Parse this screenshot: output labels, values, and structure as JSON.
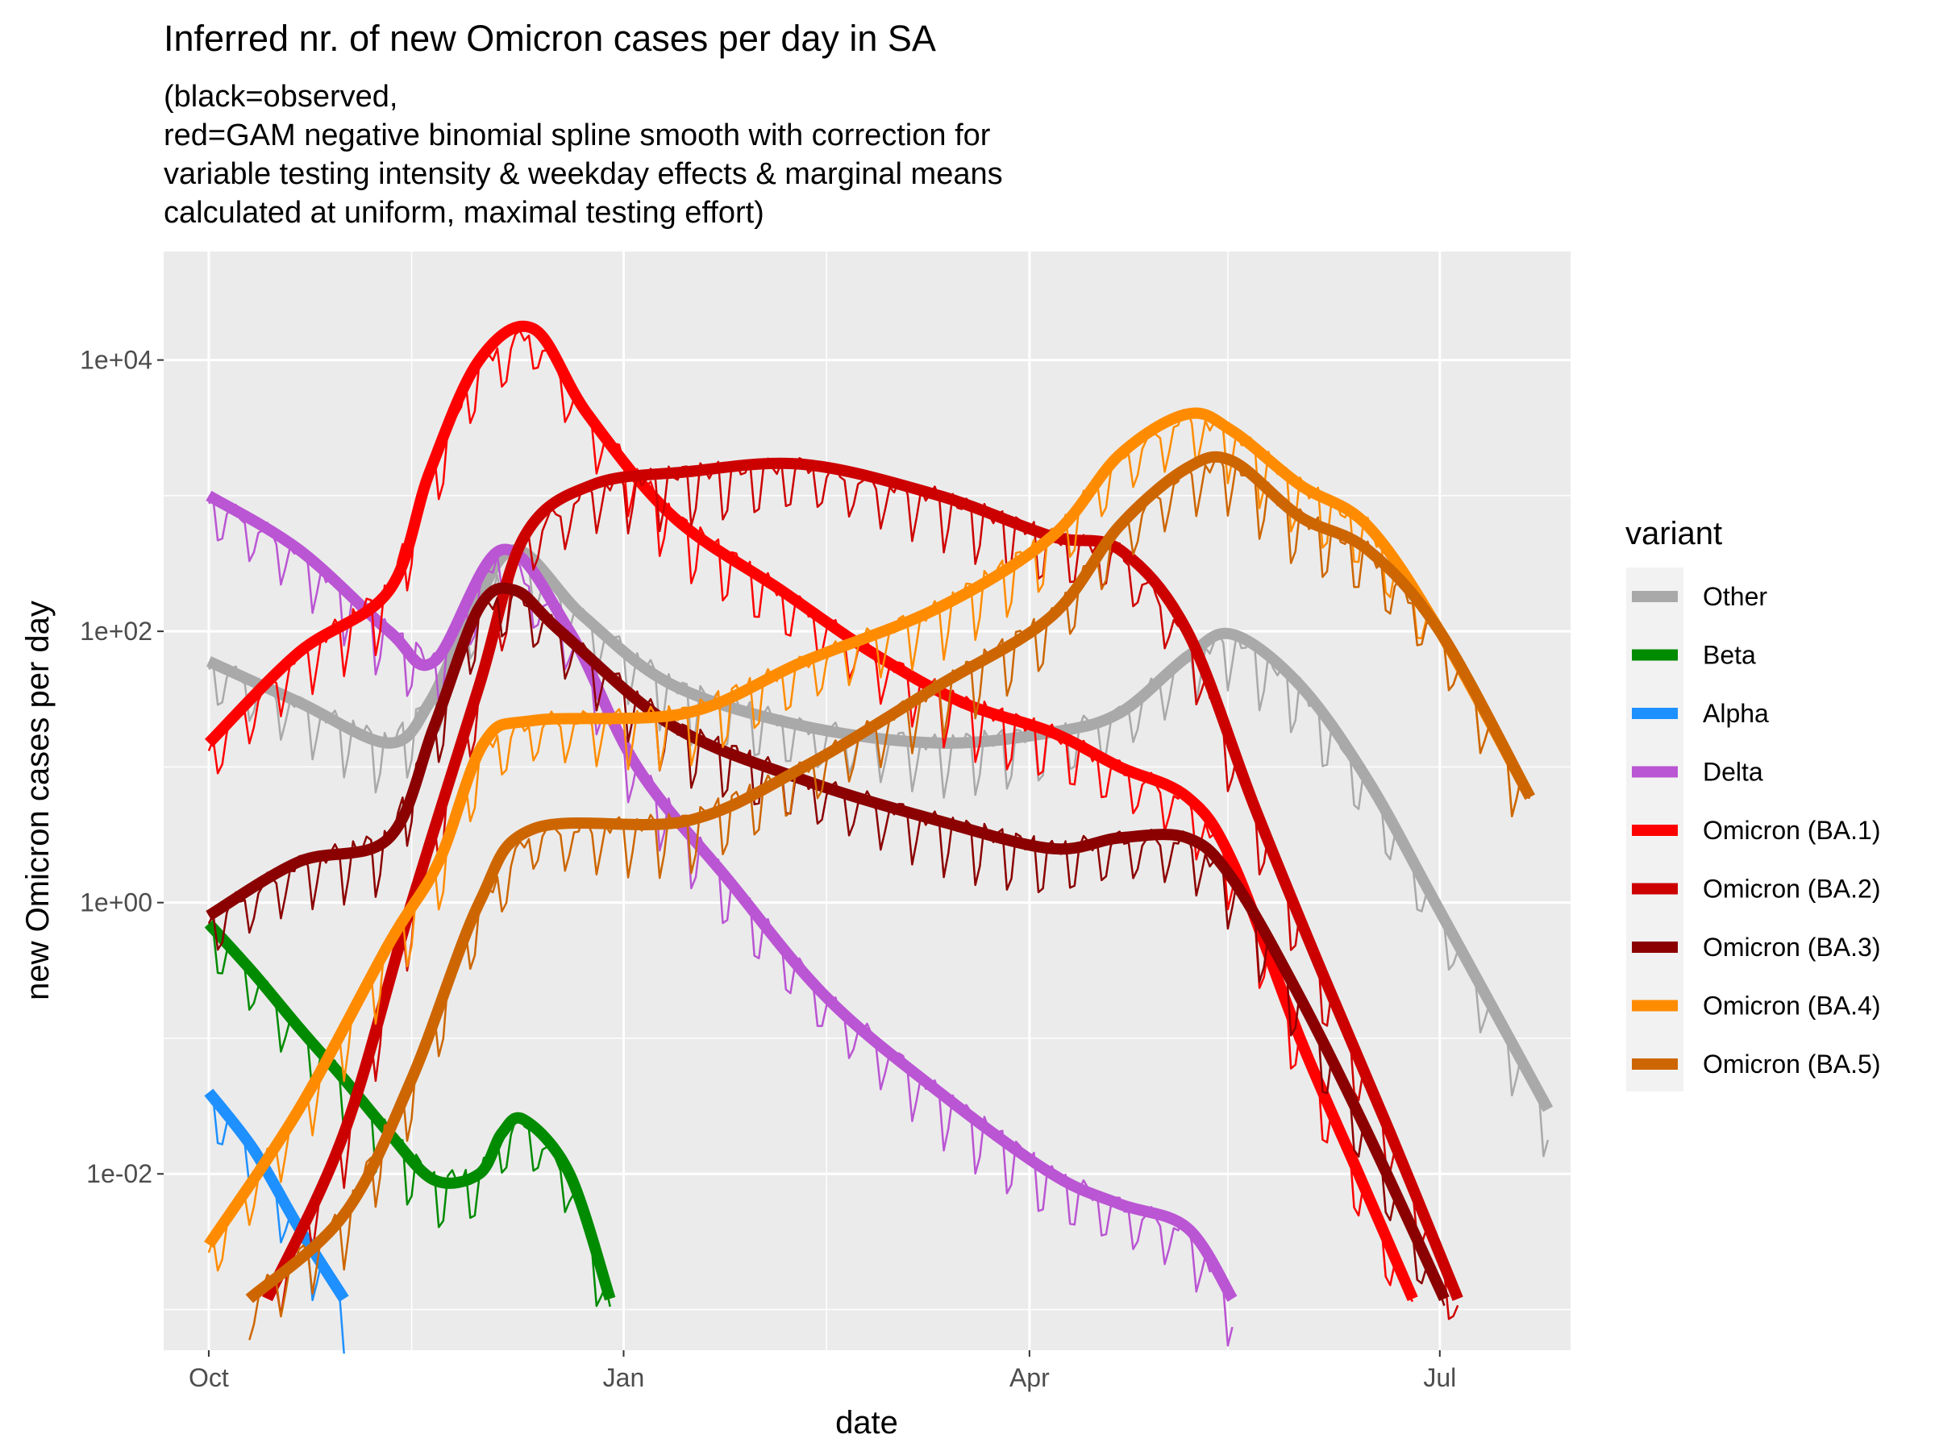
{
  "chart_data": {
    "type": "line",
    "title": "Inferred nr. of new Omicron cases per day in SA",
    "subtitle": [
      "(black=observed,",
      "red=GAM negative binomial spline smooth with correction for",
      "variable testing intensity & weekday effects & marginal means",
      "calculated at uniform, maximal testing effort)"
    ],
    "xlabel": "date",
    "ylabel": "new Omicron cases per day",
    "x_unit": "date",
    "y_scale": "log10",
    "xlim": [
      "2021-09-21",
      "2022-07-30"
    ],
    "ylim_log10": [
      -3.3,
      4.8
    ],
    "x_ticks": [
      {
        "date": "2021-10-01",
        "label": "Oct"
      },
      {
        "date": "2022-01-01",
        "label": "Jan"
      },
      {
        "date": "2022-04-01",
        "label": "Apr"
      },
      {
        "date": "2022-07-01",
        "label": "Jul"
      }
    ],
    "x_minor_ticks": [
      "2021-11-15",
      "2022-02-15",
      "2022-05-15"
    ],
    "y_ticks": [
      {
        "value": 0.01,
        "label": "1e-02"
      },
      {
        "value": 1,
        "label": "1e+00"
      },
      {
        "value": 100,
        "label": "1e+02"
      },
      {
        "value": 10000,
        "label": "1e+04"
      }
    ],
    "y_minor_ticks": [
      0.001,
      0.1,
      10,
      1000
    ],
    "grid": true,
    "legend_title": "variant",
    "legend_position": "right",
    "series": [
      {
        "name": "Other",
        "color": "#a9a9a9",
        "x": [
          "2021-10-01",
          "2021-10-21",
          "2021-11-10",
          "2021-11-19",
          "2021-11-28",
          "2021-12-08",
          "2021-12-23",
          "2022-01-12",
          "2022-02-10",
          "2022-03-12",
          "2022-04-06",
          "2022-04-21",
          "2022-05-06",
          "2022-05-16",
          "2022-05-31",
          "2022-06-15",
          "2022-06-30",
          "2022-07-25"
        ],
        "y": [
          60,
          30,
          15,
          30,
          130,
          400,
          130,
          40,
          20,
          15,
          18,
          25,
          65,
          95,
          40,
          8,
          1,
          0.03
        ]
      },
      {
        "name": "Beta",
        "color": "#008b00",
        "x": [
          "2021-10-01",
          "2021-10-11",
          "2021-10-21",
          "2021-10-31",
          "2021-11-10",
          "2021-11-20",
          "2021-11-30",
          "2021-12-05",
          "2021-12-10",
          "2021-12-20",
          "2021-12-29"
        ],
        "y": [
          0.7,
          0.3,
          0.12,
          0.05,
          0.02,
          0.009,
          0.01,
          0.02,
          0.025,
          0.01,
          0.0012
        ]
      },
      {
        "name": "Alpha",
        "color": "#1e90ff",
        "x": [
          "2021-10-01",
          "2021-10-11",
          "2021-10-21",
          "2021-10-31"
        ],
        "y": [
          0.04,
          0.015,
          0.004,
          0.0012
        ]
      },
      {
        "name": "Delta",
        "color": "#ba55d3",
        "x": [
          "2021-10-01",
          "2021-10-21",
          "2021-11-10",
          "2021-11-20",
          "2021-12-05",
          "2021-12-20",
          "2022-01-04",
          "2022-01-24",
          "2022-02-15",
          "2022-03-12",
          "2022-04-06",
          "2022-04-21",
          "2022-05-06",
          "2022-05-16"
        ],
        "y": [
          1000,
          400,
          100,
          60,
          400,
          100,
          10,
          1.5,
          0.2,
          0.04,
          0.01,
          0.006,
          0.004,
          0.0012
        ]
      },
      {
        "name": "Omicron (BA.1)",
        "color": "#ff0000",
        "x": [
          "2021-10-01",
          "2021-10-21",
          "2021-11-10",
          "2021-11-19",
          "2021-11-30",
          "2021-12-12",
          "2021-12-24",
          "2022-01-12",
          "2022-02-05",
          "2022-02-25",
          "2022-03-17",
          "2022-04-06",
          "2022-04-21",
          "2022-05-06",
          "2022-05-16",
          "2022-05-31",
          "2022-06-13",
          "2022-06-25"
        ],
        "y": [
          15,
          70,
          200,
          1500,
          10000,
          17000,
          4000,
          700,
          200,
          70,
          30,
          18,
          10,
          6,
          2,
          0.1,
          0.01,
          0.0012
        ]
      },
      {
        "name": "Omicron (BA.2)",
        "color": "#cd0000",
        "x": [
          "2021-10-14",
          "2021-10-31",
          "2021-11-15",
          "2021-11-30",
          "2021-12-10",
          "2021-12-25",
          "2022-01-15",
          "2022-02-10",
          "2022-03-12",
          "2022-04-06",
          "2022-04-21",
          "2022-05-06",
          "2022-05-21",
          "2022-06-05",
          "2022-06-20",
          "2022-07-05"
        ],
        "y": [
          0.0012,
          0.02,
          1,
          40,
          500,
          1200,
          1500,
          1700,
          1000,
          500,
          400,
          100,
          5,
          0.3,
          0.02,
          0.0012
        ]
      },
      {
        "name": "Omicron (BA.3)",
        "color": "#8b0000",
        "x": [
          "2021-10-01",
          "2021-10-21",
          "2021-11-10",
          "2021-11-20",
          "2021-11-30",
          "2021-12-08",
          "2021-12-18",
          "2022-01-12",
          "2022-02-10",
          "2022-03-12",
          "2022-04-06",
          "2022-04-21",
          "2022-05-06",
          "2022-05-16",
          "2022-05-31",
          "2022-06-15",
          "2022-07-02"
        ],
        "y": [
          0.8,
          2,
          3,
          20,
          150,
          200,
          100,
          20,
          8,
          4,
          2.5,
          3,
          3,
          1.5,
          0.2,
          0.02,
          0.0012
        ]
      },
      {
        "name": "Omicron (BA.4)",
        "color": "#ff8c00",
        "x": [
          "2021-10-01",
          "2021-10-21",
          "2021-11-10",
          "2021-11-21",
          "2021-12-01",
          "2021-12-12",
          "2022-01-15",
          "2022-02-10",
          "2022-03-12",
          "2022-04-06",
          "2022-04-21",
          "2022-05-06",
          "2022-05-16",
          "2022-05-31",
          "2022-06-15",
          "2022-07-01",
          "2022-07-21"
        ],
        "y": [
          0.003,
          0.03,
          0.5,
          2,
          15,
          22,
          25,
          60,
          150,
          500,
          2000,
          4000,
          3000,
          1200,
          600,
          100,
          6
        ]
      },
      {
        "name": "Omicron (BA.5)",
        "color": "#cd6600",
        "x": [
          "2021-10-10",
          "2021-10-31",
          "2021-11-15",
          "2021-11-30",
          "2021-12-12",
          "2022-01-15",
          "2022-02-10",
          "2022-03-12",
          "2022-04-06",
          "2022-04-21",
          "2022-05-06",
          "2022-05-16",
          "2022-05-31",
          "2022-06-15",
          "2022-07-01",
          "2022-07-21"
        ],
        "y": [
          0.0012,
          0.005,
          0.05,
          1,
          3.5,
          4,
          10,
          40,
          130,
          600,
          1600,
          1800,
          700,
          400,
          100,
          6
        ]
      }
    ]
  }
}
